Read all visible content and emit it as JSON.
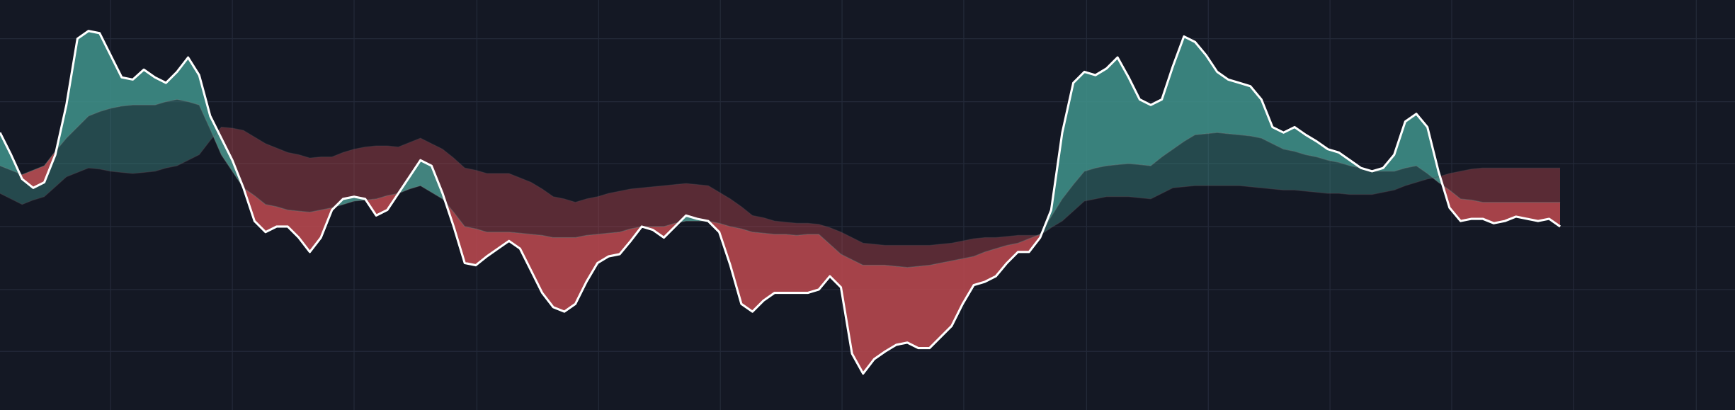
{
  "chart_data": {
    "type": "line",
    "xlim": [
      0,
      1568
    ],
    "ylim": [
      0,
      371
    ],
    "xticks": [
      100,
      210,
      320,
      431,
      541,
      651,
      761,
      871,
      982,
      1092,
      1202,
      1312,
      1422,
      1533
    ],
    "yticks": [
      53,
      109,
      166,
      223,
      279,
      336
    ],
    "grid": true,
    "up_color": "#3f8f89",
    "down_color": "#b9484f",
    "x": [
      0,
      10,
      20,
      30,
      40,
      50,
      60,
      70,
      80,
      90,
      100,
      110,
      120,
      130,
      140,
      150,
      160,
      170,
      180,
      190,
      200,
      210,
      220,
      230,
      240,
      250,
      260,
      270,
      280,
      290,
      300,
      310,
      320,
      330,
      340,
      350,
      360,
      370,
      380,
      390,
      400,
      410,
      420,
      430,
      440,
      450,
      460,
      470,
      480,
      490,
      500,
      510,
      520,
      530,
      540,
      550,
      560,
      570,
      580,
      590,
      600,
      610,
      620,
      630,
      640,
      650,
      660,
      670,
      680,
      690,
      700,
      710,
      720,
      730,
      740,
      750,
      760,
      770,
      780,
      790,
      800,
      810,
      820,
      830,
      840,
      850,
      860,
      870,
      880,
      890,
      900,
      910,
      920,
      930,
      940,
      950,
      960,
      970,
      980,
      990,
      1000,
      1010,
      1020,
      1030,
      1040,
      1050,
      1060,
      1070,
      1080,
      1090,
      1100,
      1110,
      1120,
      1130,
      1140,
      1150,
      1160,
      1170,
      1180,
      1190,
      1200,
      1210,
      1220,
      1230,
      1240,
      1250,
      1260,
      1270,
      1280,
      1290,
      1300,
      1310,
      1320,
      1330,
      1340,
      1350,
      1360,
      1370,
      1380,
      1390,
      1400,
      1410
    ],
    "series": [
      {
        "color": "#ffffff",
        "values": [
          251,
          231,
          209,
          201,
          206,
          231,
          276,
          336,
          343,
          341,
          321,
          301,
          299,
          308,
          301,
          296,
          306,
          319,
          303,
          266,
          246,
          226,
          201,
          171,
          161,
          166,
          166,
          156,
          143,
          156,
          181,
          191,
          193,
          191,
          176,
          181,
          196,
          211,
          226,
          221,
          196,
          166,
          133,
          131,
          139,
          146,
          153,
          146,
          126,
          106,
          93,
          89,
          96,
          116,
          133,
          139,
          141,
          153,
          166,
          163,
          156,
          166,
          176,
          173,
          171,
          161,
          131,
          96,
          89,
          99,
          106,
          106,
          106,
          106,
          109,
          121,
          111,
          51,
          33,
          46,
          53,
          59,
          61,
          56,
          56,
          66,
          76,
          96,
          113,
          116,
          121,
          133,
          143,
          143,
          156,
          181,
          251,
          296,
          306,
          303,
          309,
          319,
          301,
          281,
          276,
          281,
          311,
          338,
          333,
          321,
          306,
          299,
          296,
          293,
          281,
          256,
          251,
          256,
          249,
          243,
          236,
          233,
          226,
          219,
          216,
          219,
          231,
          261,
          268,
          256,
          216,
          183,
          171,
          173,
          173,
          169,
          171,
          175,
          173,
          171,
          173,
          166
        ]
      },
      {
        "color": "#6f8f8c",
        "values": [
          221,
          217,
          213,
          217,
          221,
          234,
          246,
          256,
          266,
          270,
          273,
          275,
          276,
          276,
          276,
          279,
          281,
          279,
          276,
          254,
          231,
          216,
          201,
          194,
          186,
          184,
          181,
          180,
          179,
          181,
          183,
          186,
          189,
          190,
          191,
          194,
          196,
          200,
          203,
          197,
          191,
          179,
          166,
          164,
          161,
          161,
          161,
          160,
          159,
          158,
          156,
          156,
          156,
          158,
          159,
          160,
          161,
          164,
          166,
          166,
          166,
          169,
          171,
          171,
          171,
          169,
          166,
          164,
          161,
          160,
          159,
          159,
          158,
          159,
          159,
          150,
          141,
          136,
          131,
          131,
          131,
          130,
          129,
          130,
          131,
          133,
          135,
          137,
          139,
          143,
          146,
          149,
          151,
          155,
          159,
          175,
          191,
          204,
          216,
          219,
          221,
          222,
          223,
          222,
          221,
          229,
          236,
          243,
          249,
          250,
          251,
          250,
          249,
          248,
          246,
          241,
          236,
          234,
          231,
          229,
          226,
          224,
          221,
          219,
          216,
          216,
          216,
          219,
          221,
          214,
          206,
          199,
          191,
          190,
          188,
          188,
          188,
          188,
          188,
          188,
          188,
          188
        ]
      },
      {
        "color": "#5a4a52",
        "values": [
          196,
          191,
          186,
          190,
          193,
          202,
          211,
          215,
          219,
          218,
          216,
          215,
          214,
          215,
          216,
          219,
          221,
          226,
          231,
          244,
          256,
          255,
          253,
          247,
          241,
          237,
          233,
          231,
          228,
          229,
          229,
          233,
          236,
          238,
          239,
          239,
          238,
          242,
          246,
          241,
          236,
          228,
          219,
          217,
          214,
          214,
          214,
          210,
          206,
          200,
          193,
          191,
          188,
          191,
          193,
          196,
          198,
          200,
          201,
          202,
          203,
          204,
          205,
          204,
          203,
          197,
          191,
          184,
          176,
          174,
          171,
          170,
          169,
          169,
          168,
          165,
          161,
          156,
          151,
          150,
          149,
          149,
          149,
          149,
          149,
          150,
          151,
          153,
          155,
          156,
          156,
          157,
          158,
          158,
          158,
          165,
          171,
          180,
          189,
          191,
          193,
          193,
          193,
          192,
          191,
          196,
          201,
          202,
          203,
          203,
          203,
          203,
          203,
          202,
          201,
          200,
          199,
          199,
          198,
          197,
          196,
          196,
          195,
          195,
          195,
          197,
          199,
          203,
          206,
          209,
          211,
          214,
          216,
          218,
          219,
          219,
          219,
          219,
          219,
          219,
          219,
          219
        ]
      }
    ]
  }
}
